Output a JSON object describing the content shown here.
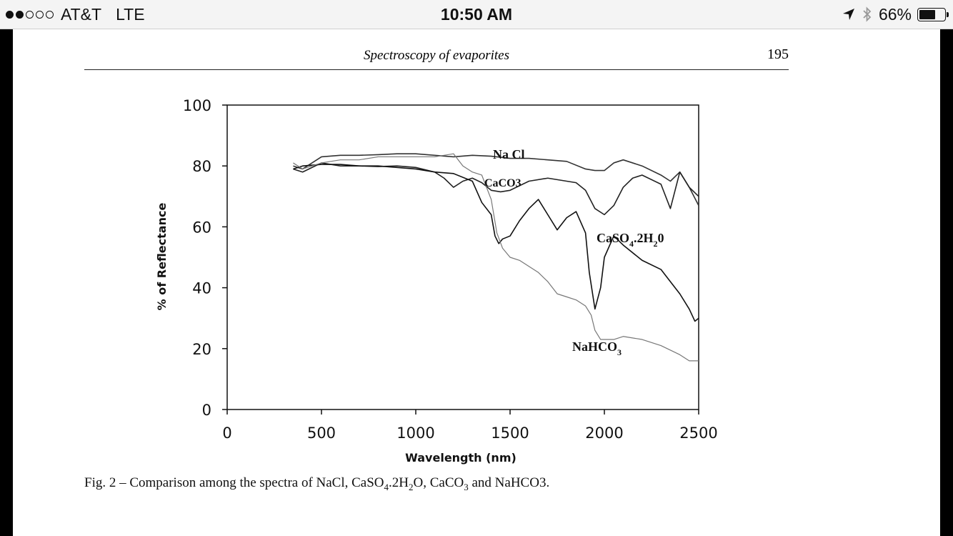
{
  "status_bar": {
    "carrier": "AT&T",
    "network": "LTE",
    "time": "10:50 AM",
    "battery": "66%",
    "battery_level": 0.66,
    "signal_bars_filled": 2,
    "signal_bars_total": 5,
    "icons": [
      "location-arrow-icon",
      "bluetooth-icon",
      "battery-icon"
    ]
  },
  "page": {
    "running_title": "Spectroscopy of evaporites",
    "page_number": "195"
  },
  "caption": {
    "prefix": "Fig. 2 – Comparison among the spectra of NaCl, CaSO",
    "sub1": "4",
    "mid1": ".2H",
    "sub2": "2",
    "mid2": "O, CaCO",
    "sub3": "3",
    "suffix": " and NaHCO3."
  },
  "chart_data": {
    "type": "line",
    "title": "",
    "xlabel": "Wavelength (nm)",
    "ylabel": "% of Reflectance",
    "xlim": [
      0,
      2500
    ],
    "ylim": [
      0,
      100
    ],
    "xticks": [
      0,
      500,
      1000,
      1500,
      2000,
      2500
    ],
    "yticks": [
      0,
      20,
      40,
      60,
      80,
      100
    ],
    "grid": false,
    "legend": "inline labels",
    "series": [
      {
        "name": "Na Cl",
        "color": "#333333",
        "x": [
          350,
          400,
          500,
          600,
          700,
          800,
          900,
          1000,
          1100,
          1200,
          1300,
          1400,
          1500,
          1600,
          1700,
          1800,
          1900,
          1950,
          2000,
          2050,
          2100,
          2200,
          2300,
          2350,
          2400,
          2450,
          2500
        ],
        "y": [
          80,
          79,
          83,
          83.5,
          83.5,
          83.7,
          84,
          84,
          83.5,
          83,
          83.5,
          83.2,
          82.5,
          82.5,
          82,
          81.5,
          79,
          78.5,
          78.5,
          81,
          82,
          80,
          77,
          75,
          78,
          73,
          67
        ]
      },
      {
        "name": "CaCO3",
        "color": "#222222",
        "x": [
          350,
          400,
          500,
          600,
          700,
          800,
          900,
          1000,
          1100,
          1150,
          1200,
          1250,
          1300,
          1350,
          1400,
          1450,
          1500,
          1600,
          1700,
          1800,
          1850,
          1900,
          1950,
          2000,
          2050,
          2100,
          2150,
          2200,
          2300,
          2350,
          2400,
          2450,
          2500
        ],
        "y": [
          79,
          78,
          81,
          80,
          80,
          79.8,
          80,
          79.5,
          78,
          76,
          73,
          75,
          76,
          74.5,
          72,
          71.5,
          72,
          75,
          76,
          75,
          74.5,
          72,
          66,
          64,
          67,
          73,
          76,
          77,
          74,
          66,
          78,
          73,
          70
        ]
      },
      {
        "name": "CaSO4.2H20",
        "color": "#111111",
        "x": [
          350,
          400,
          500,
          600,
          700,
          800,
          900,
          1000,
          1100,
          1200,
          1300,
          1350,
          1400,
          1420,
          1440,
          1460,
          1500,
          1550,
          1600,
          1650,
          1700,
          1750,
          1800,
          1850,
          1900,
          1920,
          1950,
          1980,
          2000,
          2050,
          2100,
          2200,
          2300,
          2350,
          2400,
          2450,
          2480,
          2500
        ],
        "y": [
          79,
          80,
          80.5,
          80.5,
          80,
          80,
          79.5,
          79,
          78,
          77.5,
          75,
          68,
          64,
          57,
          54.5,
          56,
          57,
          62,
          66,
          69,
          64,
          59,
          63,
          65,
          58,
          45,
          33,
          40,
          50,
          57,
          54,
          49,
          46,
          42,
          38,
          33,
          29,
          30
        ]
      },
      {
        "name": "NaHCO3",
        "color": "#777777",
        "x": [
          350,
          400,
          500,
          600,
          700,
          800,
          900,
          1000,
          1100,
          1200,
          1250,
          1300,
          1350,
          1400,
          1430,
          1460,
          1500,
          1550,
          1600,
          1650,
          1700,
          1750,
          1800,
          1850,
          1900,
          1930,
          1950,
          1980,
          2000,
          2050,
          2100,
          2200,
          2300,
          2400,
          2450,
          2500
        ],
        "y": [
          81,
          79,
          81,
          82,
          82,
          83,
          83,
          83,
          83,
          84,
          80,
          78,
          77,
          69,
          58,
          53,
          50,
          49,
          47,
          45,
          42,
          38,
          37,
          36,
          34,
          31,
          26,
          23,
          23,
          23,
          24,
          23,
          21,
          18,
          16,
          16
        ]
      }
    ],
    "series_labels": [
      "Na Cl",
      "CaCO3",
      "CaSO",
      "4",
      ".2H",
      "2",
      "0",
      "NaHCO",
      "3"
    ]
  }
}
